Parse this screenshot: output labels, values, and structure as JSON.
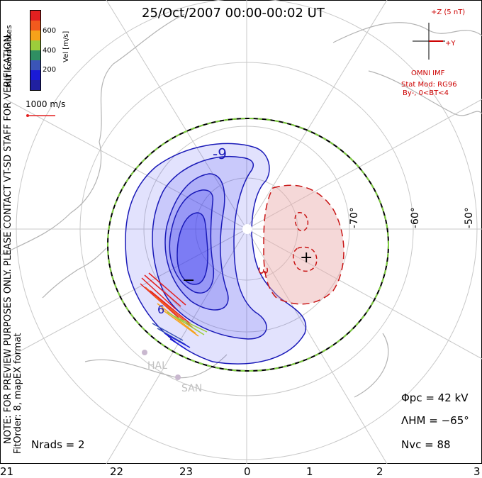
{
  "title": "25/Oct/2007 00:00-00:02 UT",
  "colorbar": {
    "label": "Vel [m/s]",
    "ticks": [
      "600",
      "400",
      "200"
    ],
    "colors": [
      "#e32020",
      "#f25a1e",
      "#f7a21a",
      "#9ccd3b",
      "#2f8f62",
      "#3b55b7",
      "#1a1ad6",
      "#2020a0"
    ]
  },
  "coord_system": "MLT coordinates",
  "scale_vector": "1000 m/s",
  "note_line1": "NOTE: FOR PREVIEW PURPOSES ONLY. PLEASE CONTACT VT-SD STAFF FOR VERIFICATION.",
  "note_line2": "FitOrder: 8, mapEX format",
  "imf": {
    "z_label": "+Z (5 nT)",
    "y_label": "+Y",
    "source": "OMNI IMF",
    "model": "Stat Mod: RG96",
    "condition": "By-, 0<BT<4"
  },
  "stats": {
    "phi_pc": "Φpc = 42 kV",
    "lambda_hm": "ΛHM = −65°",
    "n_vc": "Nvc = 88",
    "n_rads": "Nrads = 2"
  },
  "mlt_ticks": [
    "21",
    "22",
    "23",
    "0",
    "1",
    "2",
    "3"
  ],
  "lat_labels": [
    "-70°",
    "-60°",
    "-50°"
  ],
  "contour_labels": [
    "-9",
    "3",
    "6"
  ],
  "symbols": {
    "min": "−",
    "max": "+"
  },
  "sites": [
    "HAL",
    "SAN"
  ],
  "colors": {
    "negative_fill": "#3d3df0",
    "positive_fill": "#e8a9a9",
    "negative_line": "#1a1ab8",
    "positive_line": "#c81414",
    "boundary": "#000000",
    "boundary_dash": "#7fcf3f",
    "continents": "#b3b3b3"
  }
}
